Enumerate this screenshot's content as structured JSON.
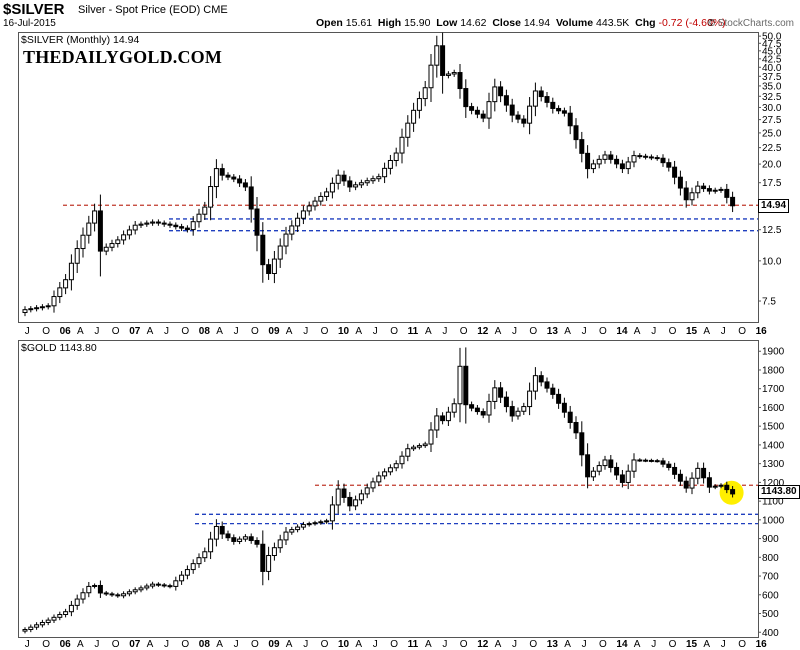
{
  "header": {
    "ticker": "$SILVER",
    "subtitle": "Silver - Spot Price (EOD)  CME",
    "date": "16-Jul-2015",
    "ohlc": {
      "open_label": "Open",
      "open": "15.61",
      "high_label": "High",
      "high": "15.90",
      "low_label": "Low",
      "low": "14.62",
      "close_label": "Close",
      "close": "14.94",
      "volume_label": "Volume",
      "volume": "443.5K",
      "chg_label": "Chg",
      "chg": "-0.72 (-4.60%)"
    },
    "brand_prefix": "© ",
    "brand": "StockCharts.com",
    "chg_color": "#c00000"
  },
  "x_labels": [
    "J",
    "O",
    "06",
    "A",
    "J",
    "O",
    "07",
    "A",
    "J",
    "O",
    "08",
    "A",
    "J",
    "O",
    "09",
    "A",
    "J",
    "O",
    "10",
    "A",
    "J",
    "O",
    "11",
    "A",
    "J",
    "O",
    "12",
    "A",
    "J",
    "O",
    "13",
    "A",
    "J",
    "O",
    "14",
    "A",
    "J",
    "O",
    "15",
    "A",
    "J",
    "O",
    "16"
  ],
  "chart_data": [
    {
      "type": "candlestick",
      "title": "$SILVER (Monthly) 14.94",
      "watermark": "THEDAILYGOLD.COM",
      "last_value": "14.94",
      "y_scale": "log",
      "ylim": [
        6.5,
        51.5
      ],
      "y_ticks": [
        "50.0",
        "47.5",
        "45.0",
        "42.5",
        "40.0",
        "37.5",
        "35.0",
        "32.5",
        "30.0",
        "27.5",
        "25.0",
        "22.5",
        "20.0",
        "17.5",
        "15.0",
        "12.5",
        "10.0",
        "7.5"
      ],
      "grid": false,
      "h_lines": [
        {
          "value": 15.0,
          "color": "#c0392b"
        },
        {
          "value": 13.6,
          "color": "#1f3fbf"
        },
        {
          "value": 12.5,
          "color": "#1f3fbf"
        }
      ],
      "colors": {
        "up": "#ffffff",
        "down": "#000000"
      },
      "anchors": [
        [
          "2005-05",
          7.1
        ],
        [
          "2005-09",
          7.3
        ],
        [
          "2005-12",
          8.8
        ],
        [
          "2006-04",
          13.2
        ],
        [
          "2006-05",
          14.4
        ],
        [
          "2006-06",
          10.8
        ],
        [
          "2006-09",
          11.7
        ],
        [
          "2006-12",
          13.0
        ],
        [
          "2007-03",
          13.3
        ],
        [
          "2007-06",
          13.0
        ],
        [
          "2007-09",
          12.6
        ],
        [
          "2007-12",
          14.8
        ],
        [
          "2008-02",
          19.5
        ],
        [
          "2008-03",
          18.6
        ],
        [
          "2008-05",
          18.1
        ],
        [
          "2008-07",
          17.1
        ],
        [
          "2008-09",
          12.1
        ],
        [
          "2008-10",
          9.8
        ],
        [
          "2008-11",
          9.2
        ],
        [
          "2009-02",
          12.2
        ],
        [
          "2009-05",
          14.4
        ],
        [
          "2009-09",
          16.5
        ],
        [
          "2009-11",
          18.6
        ],
        [
          "2010-01",
          17.1
        ],
        [
          "2010-06",
          18.4
        ],
        [
          "2010-09",
          21.8
        ],
        [
          "2010-11",
          27.0
        ],
        [
          "2011-02",
          34.8
        ],
        [
          "2011-04",
          47.0
        ],
        [
          "2011-05",
          38.0
        ],
        [
          "2011-07",
          38.8
        ],
        [
          "2011-09",
          30.4
        ],
        [
          "2011-12",
          28.0
        ],
        [
          "2012-02",
          35.0
        ],
        [
          "2012-05",
          28.6
        ],
        [
          "2012-07",
          27.0
        ],
        [
          "2012-09",
          34.0
        ],
        [
          "2012-12",
          30.0
        ],
        [
          "2013-02",
          29.0
        ],
        [
          "2013-04",
          24.0
        ],
        [
          "2013-06",
          19.5
        ],
        [
          "2013-09",
          21.5
        ],
        [
          "2013-12",
          19.5
        ],
        [
          "2014-02",
          21.4
        ],
        [
          "2014-06",
          21.0
        ],
        [
          "2014-08",
          19.7
        ],
        [
          "2014-11",
          15.6
        ],
        [
          "2015-01",
          17.2
        ],
        [
          "2015-03",
          16.6
        ],
        [
          "2015-05",
          16.8
        ],
        [
          "2015-07",
          14.94
        ]
      ]
    },
    {
      "type": "candlestick",
      "title": "$GOLD 1143.80",
      "last_value": "1143.80",
      "y_scale": "linear",
      "ylim": [
        380,
        1960
      ],
      "y_ticks": [
        "1900",
        "1800",
        "1700",
        "1600",
        "1500",
        "1400",
        "1300",
        "1200",
        "1100",
        "1000",
        "900",
        "800",
        "700",
        "600",
        "500",
        "400"
      ],
      "grid": false,
      "h_lines": [
        {
          "value": 1190,
          "color": "#c0392b"
        },
        {
          "value": 1035,
          "color": "#1f3fbf"
        },
        {
          "value": 985,
          "color": "#1f3fbf"
        }
      ],
      "highlight": {
        "value": 1150,
        "color": "#ffef00"
      },
      "colors": {
        "up": "#ffffff",
        "down": "#000000"
      },
      "anchors": [
        [
          "2005-05",
          420
        ],
        [
          "2005-09",
          470
        ],
        [
          "2005-12",
          515
        ],
        [
          "2006-04",
          650
        ],
        [
          "2006-05",
          655
        ],
        [
          "2006-06",
          615
        ],
        [
          "2006-09",
          600
        ],
        [
          "2006-12",
          632
        ],
        [
          "2007-03",
          662
        ],
        [
          "2007-06",
          650
        ],
        [
          "2007-09",
          740
        ],
        [
          "2007-12",
          835
        ],
        [
          "2008-02",
          970
        ],
        [
          "2008-03",
          930
        ],
        [
          "2008-05",
          890
        ],
        [
          "2008-07",
          915
        ],
        [
          "2008-09",
          875
        ],
        [
          "2008-10",
          730
        ],
        [
          "2008-11",
          815
        ],
        [
          "2009-02",
          940
        ],
        [
          "2009-05",
          980
        ],
        [
          "2009-09",
          1000
        ],
        [
          "2009-11",
          1170
        ],
        [
          "2010-01",
          1080
        ],
        [
          "2010-06",
          1240
        ],
        [
          "2010-09",
          1305
        ],
        [
          "2010-11",
          1385
        ],
        [
          "2011-02",
          1410
        ],
        [
          "2011-04",
          1560
        ],
        [
          "2011-05",
          1535
        ],
        [
          "2011-07",
          1625
        ],
        [
          "2011-08",
          1825
        ],
        [
          "2011-09",
          1620
        ],
        [
          "2011-12",
          1565
        ],
        [
          "2012-02",
          1710
        ],
        [
          "2012-05",
          1560
        ],
        [
          "2012-07",
          1610
        ],
        [
          "2012-09",
          1775
        ],
        [
          "2012-12",
          1675
        ],
        [
          "2013-02",
          1580
        ],
        [
          "2013-04",
          1470
        ],
        [
          "2013-06",
          1235
        ],
        [
          "2013-09",
          1325
        ],
        [
          "2013-12",
          1205
        ],
        [
          "2014-02",
          1325
        ],
        [
          "2014-06",
          1320
        ],
        [
          "2014-08",
          1285
        ],
        [
          "2014-11",
          1175
        ],
        [
          "2015-01",
          1280
        ],
        [
          "2015-03",
          1180
        ],
        [
          "2015-05",
          1190
        ],
        [
          "2015-07",
          1143.8
        ]
      ]
    }
  ]
}
